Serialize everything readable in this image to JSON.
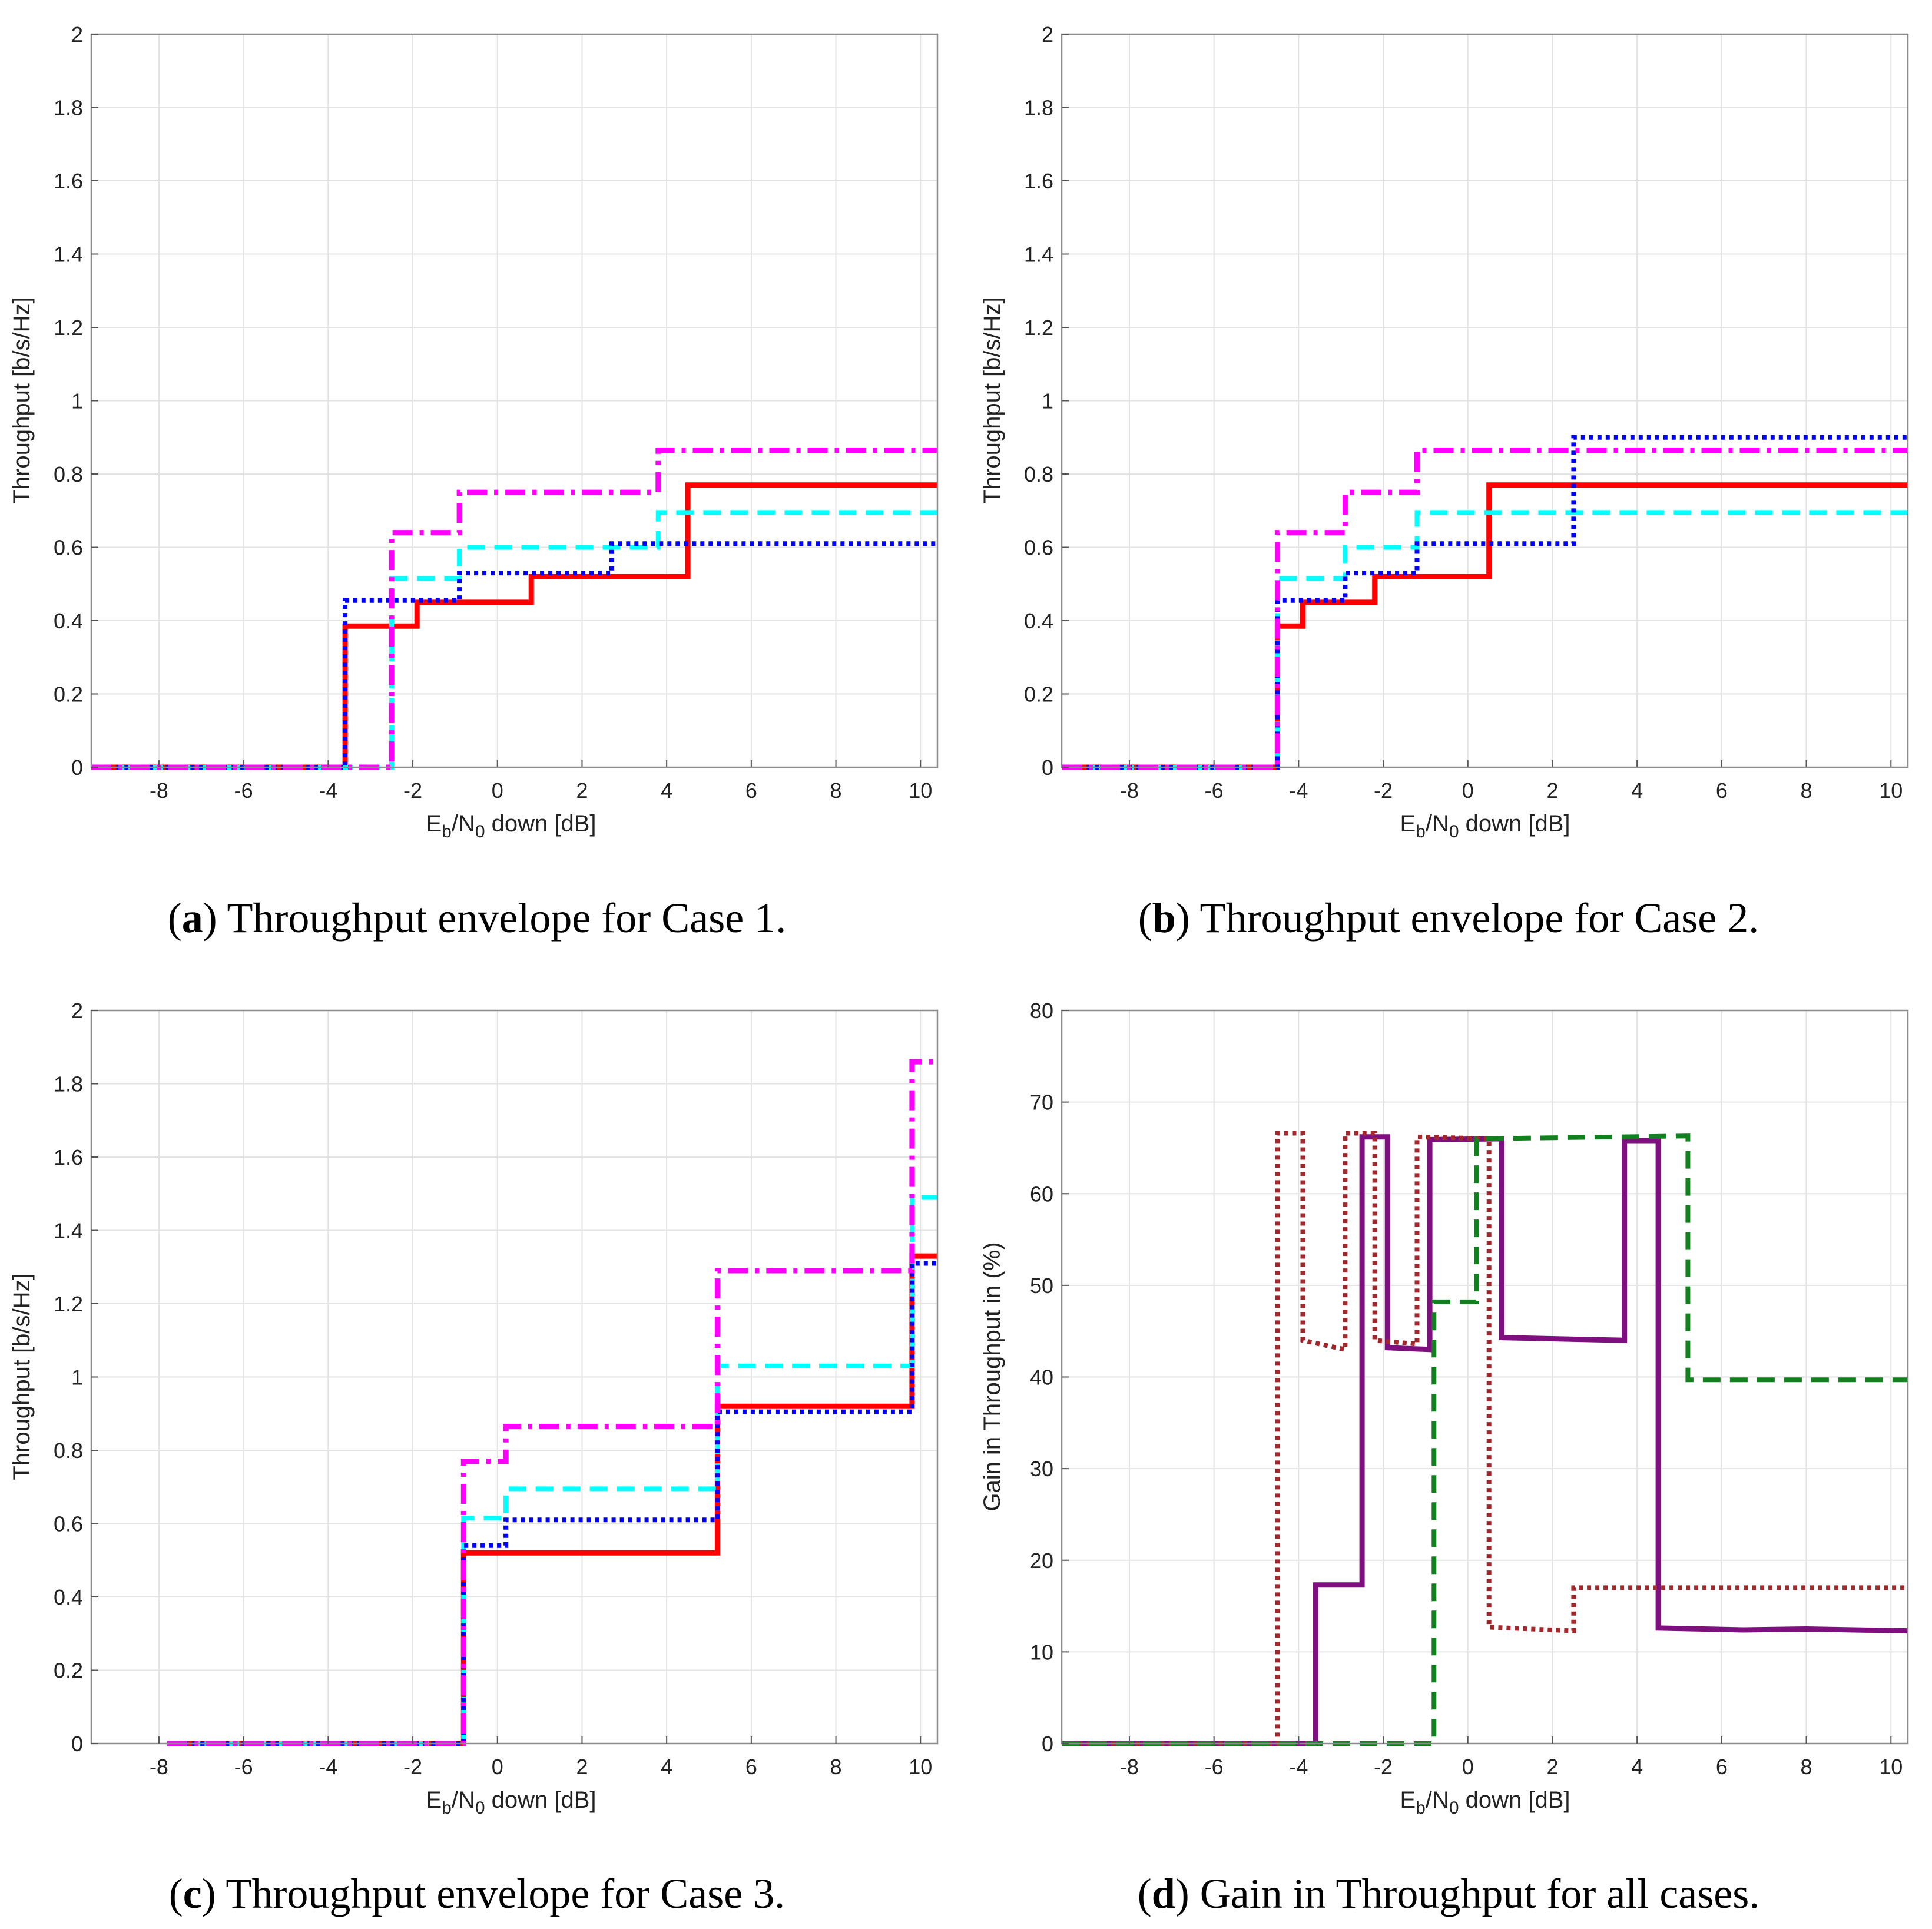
{
  "chart_data": [
    {
      "id": "a",
      "type": "line",
      "step": true,
      "xlabel_main": "E",
      "xlabel_sub1": "b",
      "xlabel_mid": "/N",
      "xlabel_sub2": "0",
      "xlabel_tail": " down [dB]",
      "ylabel": "Throughput [b/s/Hz]",
      "xlim": [
        -9.6,
        10.4
      ],
      "ylim": [
        0,
        2
      ],
      "xticks": [
        -8,
        -6,
        -4,
        -2,
        0,
        2,
        4,
        6,
        8,
        10
      ],
      "xtick_labels": [
        "-8",
        "-6",
        "-4",
        "-2",
        "0",
        "2",
        "4",
        "6",
        "8",
        "10"
      ],
      "yticks": [
        0,
        0.2,
        0.4,
        0.6,
        0.8,
        1,
        1.2,
        1.4,
        1.6,
        1.8,
        2
      ],
      "ytick_labels": [
        "0",
        "0.2",
        "0.4",
        "0.6",
        "0.8",
        "1",
        "1.2",
        "1.4",
        "1.6",
        "1.8",
        "2"
      ],
      "grid": true,
      "caption_letter": "a",
      "caption_text": " Throughput envelope for Case 1.",
      "series": [
        {
          "name": "red-solid",
          "color": "#ff0000",
          "style": "solid",
          "points": [
            [
              -9.6,
              0
            ],
            [
              -3.6,
              0
            ],
            [
              -3.6,
              0.385
            ],
            [
              -1.9,
              0.385
            ],
            [
              -1.9,
              0.45
            ],
            [
              0.8,
              0.45
            ],
            [
              0.8,
              0.52
            ],
            [
              4.5,
              0.52
            ],
            [
              4.5,
              0.77
            ],
            [
              10.4,
              0.77
            ]
          ]
        },
        {
          "name": "cyan-dashed",
          "color": "#00ffff",
          "style": "dashed",
          "points": [
            [
              -9.6,
              0
            ],
            [
              -2.5,
              0
            ],
            [
              -2.5,
              0.515
            ],
            [
              -0.9,
              0.515
            ],
            [
              -0.9,
              0.6
            ],
            [
              3.8,
              0.6
            ],
            [
              3.8,
              0.695
            ],
            [
              10.4,
              0.695
            ]
          ]
        },
        {
          "name": "blue-dotted",
          "color": "#0000ff",
          "style": "dotted",
          "points": [
            [
              -9.6,
              0
            ],
            [
              -3.6,
              0
            ],
            [
              -3.6,
              0.455
            ],
            [
              -0.9,
              0.455
            ],
            [
              -0.9,
              0.53
            ],
            [
              2.7,
              0.53
            ],
            [
              2.7,
              0.61
            ],
            [
              10.4,
              0.61
            ]
          ]
        },
        {
          "name": "magenta-dashdot",
          "color": "#ff00ff",
          "style": "dashdot",
          "points": [
            [
              -9.6,
              0
            ],
            [
              -2.5,
              0
            ],
            [
              -2.5,
              0.64
            ],
            [
              -0.9,
              0.64
            ],
            [
              -0.9,
              0.75
            ],
            [
              3.8,
              0.75
            ],
            [
              3.8,
              0.865
            ],
            [
              10.4,
              0.865
            ]
          ]
        }
      ]
    },
    {
      "id": "b",
      "type": "line",
      "step": true,
      "xlabel_main": "E",
      "xlabel_sub1": "b",
      "xlabel_mid": "/N",
      "xlabel_sub2": "0",
      "xlabel_tail": " down [dB]",
      "ylabel": "Throughput [b/s/Hz]",
      "xlim": [
        -9.6,
        10.4
      ],
      "ylim": [
        0,
        2
      ],
      "xticks": [
        -8,
        -6,
        -4,
        -2,
        0,
        2,
        4,
        6,
        8,
        10
      ],
      "xtick_labels": [
        "-8",
        "-6",
        "-4",
        "-2",
        "0",
        "2",
        "4",
        "6",
        "8",
        "10"
      ],
      "yticks": [
        0,
        0.2,
        0.4,
        0.6,
        0.8,
        1,
        1.2,
        1.4,
        1.6,
        1.8,
        2
      ],
      "ytick_labels": [
        "0",
        "0.2",
        "0.4",
        "0.6",
        "0.8",
        "1",
        "1.2",
        "1.4",
        "1.6",
        "1.8",
        "2"
      ],
      "grid": true,
      "caption_letter": "b",
      "caption_text": " Throughput envelope for Case 2.",
      "series": [
        {
          "name": "red-solid",
          "color": "#ff0000",
          "style": "solid",
          "points": [
            [
              -9.6,
              0
            ],
            [
              -4.5,
              0
            ],
            [
              -4.5,
              0.385
            ],
            [
              -3.9,
              0.385
            ],
            [
              -3.9,
              0.45
            ],
            [
              -2.2,
              0.45
            ],
            [
              -2.2,
              0.52
            ],
            [
              0.5,
              0.52
            ],
            [
              0.5,
              0.77
            ],
            [
              10.4,
              0.77
            ]
          ]
        },
        {
          "name": "cyan-dashed",
          "color": "#00ffff",
          "style": "dashed",
          "points": [
            [
              -9.6,
              0
            ],
            [
              -4.5,
              0
            ],
            [
              -4.5,
              0.515
            ],
            [
              -2.9,
              0.515
            ],
            [
              -2.9,
              0.6
            ],
            [
              -1.2,
              0.6
            ],
            [
              -1.2,
              0.695
            ],
            [
              10.4,
              0.695
            ]
          ]
        },
        {
          "name": "blue-dotted",
          "color": "#0000ff",
          "style": "dotted",
          "points": [
            [
              -9.6,
              0
            ],
            [
              -4.5,
              0
            ],
            [
              -4.5,
              0.455
            ],
            [
              -2.9,
              0.455
            ],
            [
              -2.9,
              0.53
            ],
            [
              -1.2,
              0.53
            ],
            [
              -1.2,
              0.61
            ],
            [
              2.5,
              0.61
            ],
            [
              2.5,
              0.9
            ],
            [
              10.4,
              0.9
            ]
          ]
        },
        {
          "name": "magenta-dashdot",
          "color": "#ff00ff",
          "style": "dashdot",
          "points": [
            [
              -9.6,
              0
            ],
            [
              -4.5,
              0
            ],
            [
              -4.5,
              0.64
            ],
            [
              -2.9,
              0.64
            ],
            [
              -2.9,
              0.75
            ],
            [
              -1.2,
              0.75
            ],
            [
              -1.2,
              0.865
            ],
            [
              10.4,
              0.865
            ]
          ]
        }
      ]
    },
    {
      "id": "c",
      "type": "line",
      "step": true,
      "xlabel_main": "E",
      "xlabel_sub1": "b",
      "xlabel_mid": "/N",
      "xlabel_sub2": "0",
      "xlabel_tail": " down [dB]",
      "ylabel": "Throughput [b/s/Hz]",
      "xlim": [
        -9.6,
        10.4
      ],
      "ylim": [
        0,
        2
      ],
      "xticks": [
        -8,
        -6,
        -4,
        -2,
        0,
        2,
        4,
        6,
        8,
        10
      ],
      "xtick_labels": [
        "-8",
        "-6",
        "-4",
        "-2",
        "0",
        "2",
        "4",
        "6",
        "8",
        "10"
      ],
      "yticks": [
        0,
        0.2,
        0.4,
        0.6,
        0.8,
        1,
        1.2,
        1.4,
        1.6,
        1.8,
        2
      ],
      "ytick_labels": [
        "0",
        "0.2",
        "0.4",
        "0.6",
        "0.8",
        "1",
        "1.2",
        "1.4",
        "1.6",
        "1.8",
        "2"
      ],
      "grid": true,
      "caption_letter": "c",
      "caption_text": " Throughput envelope for Case 3.",
      "series": [
        {
          "name": "red-solid",
          "color": "#ff0000",
          "style": "solid",
          "points": [
            [
              -7.8,
              0
            ],
            [
              -0.8,
              0
            ],
            [
              -0.8,
              0.52
            ],
            [
              5.2,
              0.52
            ],
            [
              5.2,
              0.92
            ],
            [
              9.8,
              0.92
            ],
            [
              9.8,
              1.33
            ],
            [
              10.4,
              1.33
            ]
          ]
        },
        {
          "name": "cyan-dashed",
          "color": "#00ffff",
          "style": "dashed",
          "points": [
            [
              -7.8,
              0
            ],
            [
              -0.8,
              0
            ],
            [
              -0.8,
              0.615
            ],
            [
              0.2,
              0.615
            ],
            [
              0.2,
              0.695
            ],
            [
              5.2,
              0.695
            ],
            [
              5.2,
              1.03
            ],
            [
              9.8,
              1.03
            ],
            [
              9.8,
              1.49
            ],
            [
              10.4,
              1.49
            ]
          ]
        },
        {
          "name": "blue-dotted",
          "color": "#0000ff",
          "style": "dotted",
          "points": [
            [
              -7.8,
              0
            ],
            [
              -0.8,
              0
            ],
            [
              -0.8,
              0.54
            ],
            [
              0.2,
              0.54
            ],
            [
              0.2,
              0.61
            ],
            [
              5.2,
              0.61
            ],
            [
              5.2,
              0.905
            ],
            [
              9.8,
              0.905
            ],
            [
              9.8,
              1.31
            ],
            [
              10.4,
              1.31
            ]
          ]
        },
        {
          "name": "magenta-dashdot",
          "color": "#ff00ff",
          "style": "dashdot",
          "points": [
            [
              -7.8,
              0
            ],
            [
              -0.8,
              0
            ],
            [
              -0.8,
              0.77
            ],
            [
              0.2,
              0.77
            ],
            [
              0.2,
              0.865
            ],
            [
              5.2,
              0.865
            ],
            [
              5.2,
              1.29
            ],
            [
              9.8,
              1.29
            ],
            [
              9.8,
              1.86
            ],
            [
              10.4,
              1.86
            ]
          ]
        }
      ]
    },
    {
      "id": "d",
      "type": "line",
      "step": true,
      "xlabel_main": "E",
      "xlabel_sub1": "b",
      "xlabel_mid": "/N",
      "xlabel_sub2": "0",
      "xlabel_tail": " down [dB]",
      "ylabel": "Gain in Throughput in (%)",
      "xlim": [
        -9.6,
        10.4
      ],
      "ylim": [
        0,
        80
      ],
      "xticks": [
        -8,
        -6,
        -4,
        -2,
        0,
        2,
        4,
        6,
        8,
        10
      ],
      "xtick_labels": [
        "-8",
        "-6",
        "-4",
        "-2",
        "0",
        "2",
        "4",
        "6",
        "8",
        "10"
      ],
      "yticks": [
        0,
        10,
        20,
        30,
        40,
        50,
        60,
        70,
        80
      ],
      "ytick_labels": [
        "0",
        "10",
        "20",
        "30",
        "40",
        "50",
        "60",
        "70",
        "80"
      ],
      "grid": true,
      "caption_letter": "d",
      "caption_text": " Gain in Throughput for all cases.",
      "series": [
        {
          "name": "purple-solid",
          "color": "#7e0f7e",
          "style": "solid",
          "points": [
            [
              -9.6,
              0
            ],
            [
              -3.6,
              0
            ],
            [
              -3.6,
              17.3
            ],
            [
              -2.5,
              17.3
            ],
            [
              -2.5,
              66.2
            ],
            [
              -1.9,
              66.2
            ],
            [
              -1.9,
              43.2
            ],
            [
              -0.9,
              43
            ],
            [
              -0.9,
              65.9
            ],
            [
              0.8,
              66
            ],
            [
              0.8,
              44.3
            ],
            [
              3.7,
              44
            ],
            [
              3.7,
              65.8
            ],
            [
              4.5,
              65.8
            ],
            [
              4.5,
              12.6
            ],
            [
              6.5,
              12.4
            ],
            [
              8,
              12.5
            ],
            [
              10.4,
              12.3
            ]
          ]
        },
        {
          "name": "brown-dotted",
          "color": "#a0282d",
          "style": "dotted",
          "points": [
            [
              -9.6,
              0
            ],
            [
              -4.5,
              0
            ],
            [
              -4.5,
              66.6
            ],
            [
              -3.9,
              66.6
            ],
            [
              -3.9,
              44
            ],
            [
              -2.9,
              43
            ],
            [
              -2.9,
              66.6
            ],
            [
              -2.2,
              66.6
            ],
            [
              -2.2,
              44
            ],
            [
              -1.2,
              43.6
            ],
            [
              -1.2,
              66.2
            ],
            [
              0.5,
              66
            ],
            [
              0.5,
              12.7
            ],
            [
              2.5,
              12.3
            ],
            [
              2.5,
              17
            ],
            [
              10.4,
              17
            ]
          ]
        },
        {
          "name": "green-dashed",
          "color": "#12801e",
          "style": "dashed",
          "points": [
            [
              -9.6,
              0
            ],
            [
              -0.8,
              0
            ],
            [
              -0.8,
              48.2
            ],
            [
              0.2,
              48.2
            ],
            [
              0.2,
              66
            ],
            [
              5.2,
              66.3
            ],
            [
              5.2,
              39.7
            ],
            [
              10.4,
              39.7
            ]
          ]
        }
      ]
    }
  ]
}
